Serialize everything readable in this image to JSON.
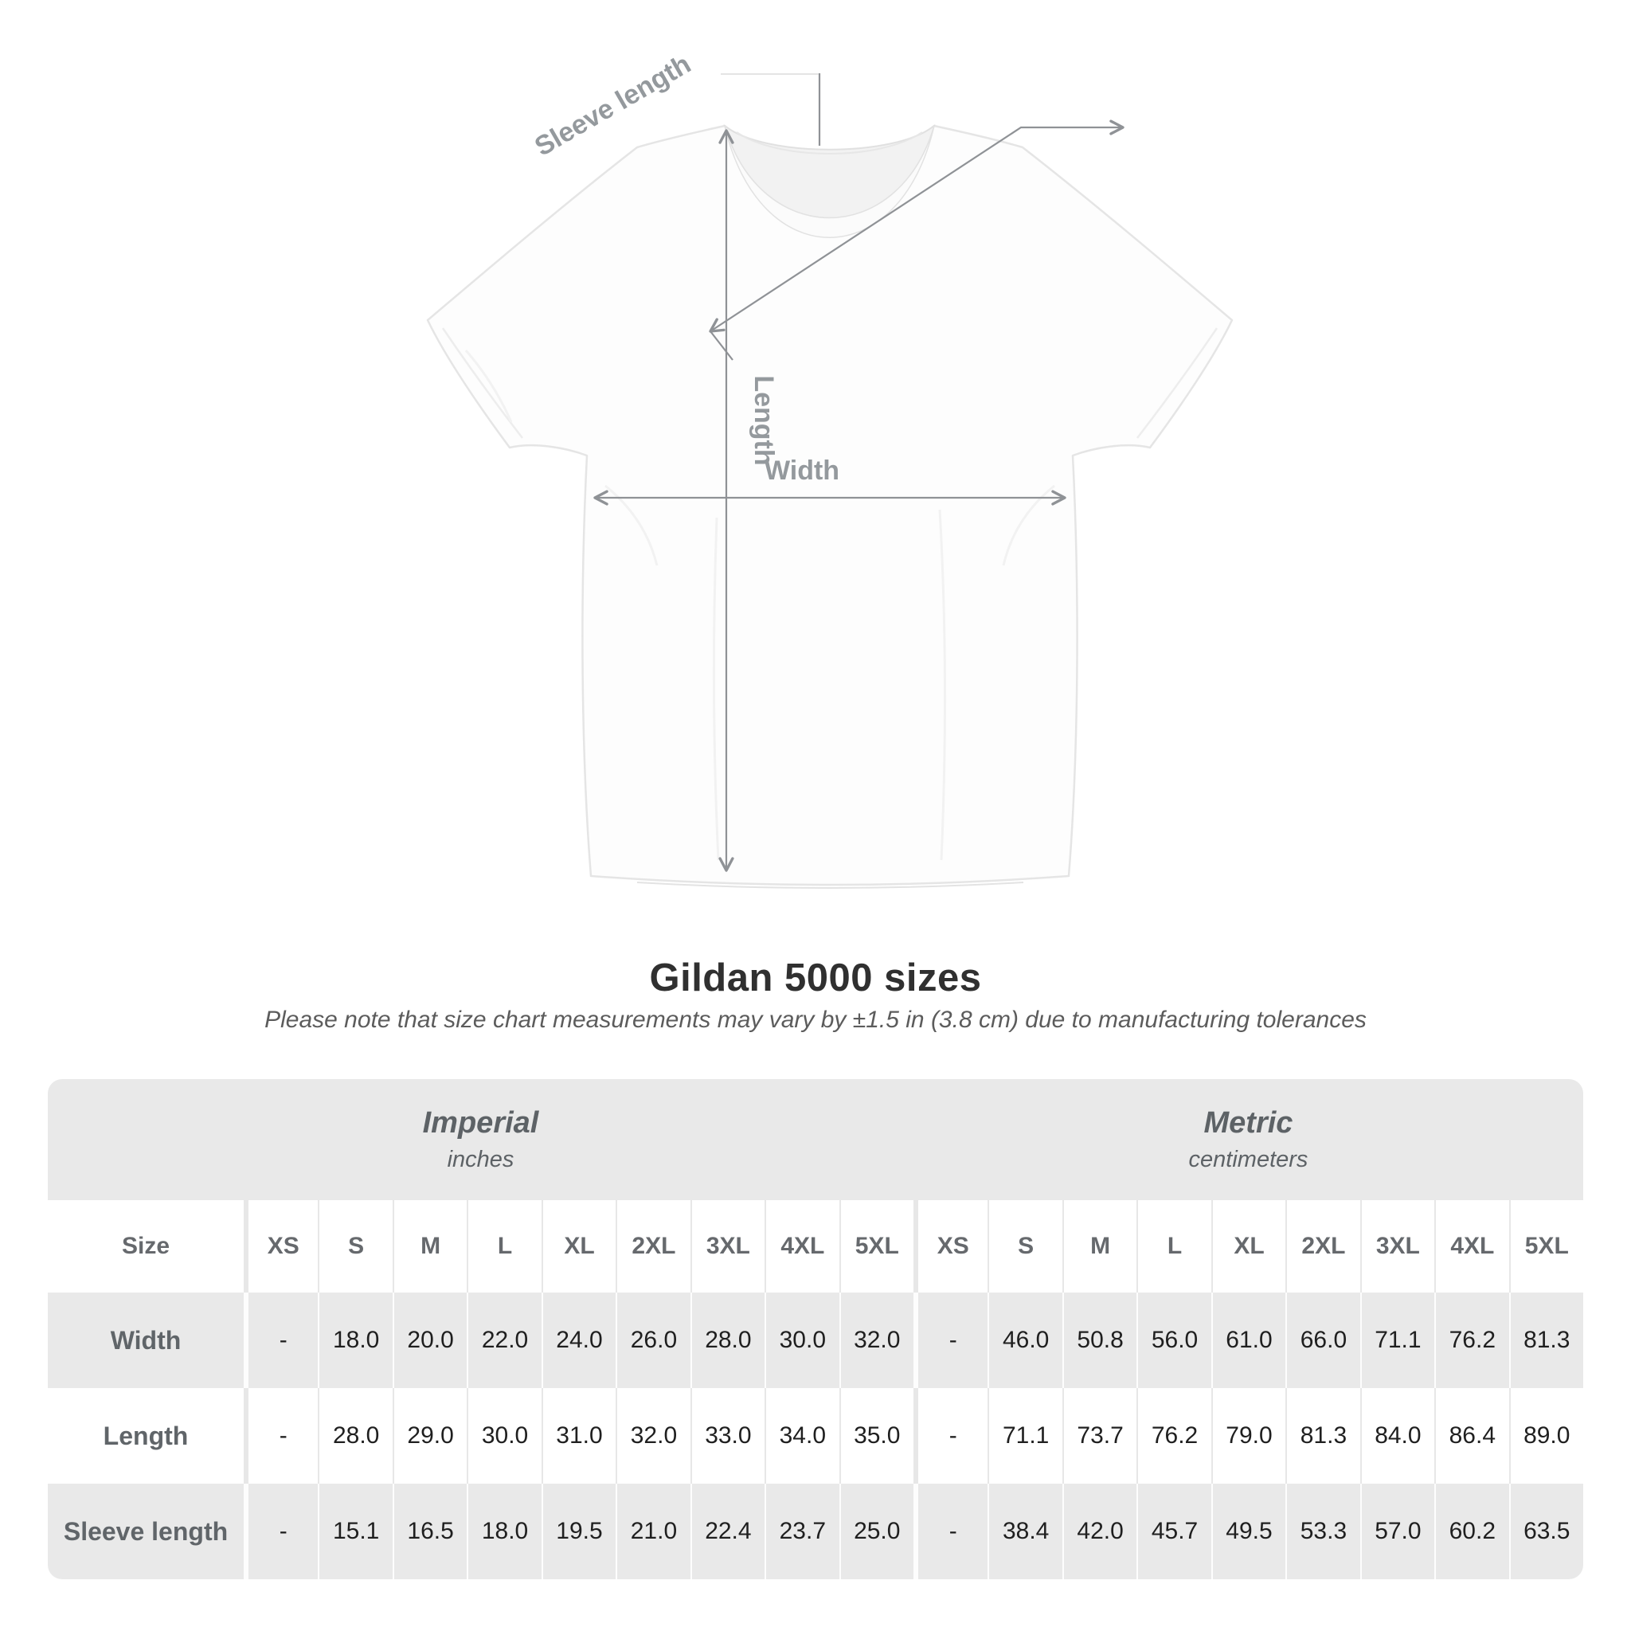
{
  "title": "Gildan 5000 sizes",
  "subtitle": "Please note that size chart measurements may vary by ±1.5 in (3.8 cm) due to manufacturing tolerances",
  "diagram": {
    "sleeve_label": "Sleeve length",
    "length_label": "Length",
    "width_label": "Width",
    "line_color": "#8f9296",
    "label_color": "#94999d"
  },
  "chart_data": {
    "type": "table",
    "title": "Gildan 5000 sizes",
    "row_header": "Size",
    "sizes": [
      "XS",
      "S",
      "M",
      "L",
      "XL",
      "2XL",
      "3XL",
      "4XL",
      "5XL"
    ],
    "unit_groups": [
      {
        "name": "Imperial",
        "unit": "inches"
      },
      {
        "name": "Metric",
        "unit": "centimeters"
      }
    ],
    "rows": [
      {
        "label": "Width",
        "imperial": [
          "-",
          "18.0",
          "20.0",
          "22.0",
          "24.0",
          "26.0",
          "28.0",
          "30.0",
          "32.0"
        ],
        "metric": [
          "-",
          "46.0",
          "50.8",
          "56.0",
          "61.0",
          "66.0",
          "71.1",
          "76.2",
          "81.3"
        ]
      },
      {
        "label": "Length",
        "imperial": [
          "-",
          "28.0",
          "29.0",
          "30.0",
          "31.0",
          "32.0",
          "33.0",
          "34.0",
          "35.0"
        ],
        "metric": [
          "-",
          "71.1",
          "73.7",
          "76.2",
          "79.0",
          "81.3",
          "84.0",
          "86.4",
          "89.0"
        ]
      },
      {
        "label": "Sleeve length",
        "imperial": [
          "-",
          "15.1",
          "16.5",
          "18.0",
          "19.5",
          "21.0",
          "22.4",
          "23.7",
          "25.0"
        ],
        "metric": [
          "-",
          "38.4",
          "42.0",
          "45.7",
          "49.5",
          "53.3",
          "57.0",
          "60.2",
          "63.5"
        ]
      }
    ],
    "colors": {
      "band_background": "#e9e9e9",
      "row_gray": "#e9e9e9",
      "row_white": "#ffffff",
      "header_text": "#66696d",
      "value_text": "#1f1f1f"
    }
  }
}
